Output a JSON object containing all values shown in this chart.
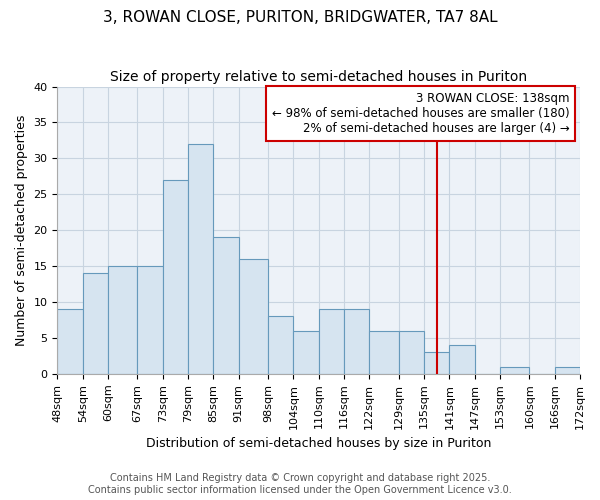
{
  "title": "3, ROWAN CLOSE, PURITON, BRIDGWATER, TA7 8AL",
  "subtitle": "Size of property relative to semi-detached houses in Puriton",
  "xlabel": "Distribution of semi-detached houses by size in Puriton",
  "ylabel": "Number of semi-detached properties",
  "bin_edges": [
    48,
    54,
    60,
    67,
    73,
    79,
    85,
    91,
    98,
    104,
    110,
    116,
    122,
    129,
    135,
    141,
    147,
    153,
    160,
    166,
    172
  ],
  "counts": [
    9,
    14,
    15,
    15,
    27,
    32,
    19,
    16,
    8,
    6,
    9,
    9,
    6,
    6,
    3,
    4,
    0,
    1,
    0,
    1
  ],
  "bar_facecolor": "#d6e4f0",
  "bar_edgecolor": "#6699bb",
  "gridcolor": "#c8d4e0",
  "bg_color": "#edf2f8",
  "fig_bg_color": "#ffffff",
  "vline_x": 138,
  "vline_color": "#cc0000",
  "annotation_text": "3 ROWAN CLOSE: 138sqm\n← 98% of semi-detached houses are smaller (180)\n2% of semi-detached houses are larger (4) →",
  "annotation_box_edgecolor": "#cc0000",
  "annotation_box_facecolor": "#ffffff",
  "footer_text": "Contains HM Land Registry data © Crown copyright and database right 2025.\nContains public sector information licensed under the Open Government Licence v3.0.",
  "ylim": [
    0,
    40
  ],
  "title_fontsize": 11,
  "subtitle_fontsize": 10,
  "axis_label_fontsize": 9,
  "tick_label_fontsize": 8,
  "annotation_fontsize": 8.5,
  "footer_fontsize": 7
}
